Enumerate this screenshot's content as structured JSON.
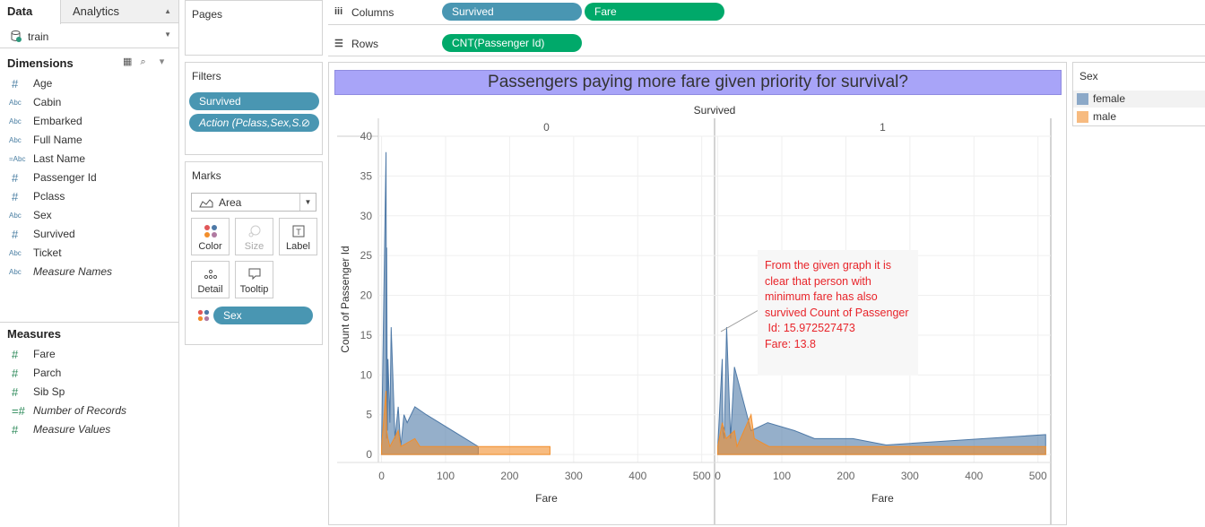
{
  "data_pane": {
    "tabs": [
      {
        "label": "Data"
      },
      {
        "label": "Analytics"
      }
    ],
    "source": "train",
    "dimensions_title": "Dimensions",
    "dimensions": [
      {
        "type": "#",
        "label": "Age"
      },
      {
        "type": "Abc",
        "label": "Cabin"
      },
      {
        "type": "Abc",
        "label": "Embarked"
      },
      {
        "type": "Abc",
        "label": "Full Name"
      },
      {
        "type": "=Abc",
        "label": "Last Name"
      },
      {
        "type": "#",
        "label": "Passenger Id"
      },
      {
        "type": "#",
        "label": "Pclass"
      },
      {
        "type": "Abc",
        "label": "Sex"
      },
      {
        "type": "#",
        "label": "Survived"
      },
      {
        "type": "Abc",
        "label": "Ticket"
      },
      {
        "type": "Abc",
        "label": "Measure Names"
      }
    ],
    "measures_title": "Measures",
    "measures": [
      {
        "type": "#",
        "label": "Fare"
      },
      {
        "type": "#",
        "label": "Parch"
      },
      {
        "type": "#",
        "label": "Sib Sp"
      },
      {
        "type": "=#",
        "label": "Number of Records"
      },
      {
        "type": "#",
        "label": "Measure Values"
      }
    ]
  },
  "pages": {
    "title": "Pages"
  },
  "filters": {
    "title": "Filters",
    "pills": [
      "Survived",
      "Action (Pclass,Sex,S.."
    ]
  },
  "marks": {
    "title": "Marks",
    "mark_type": "Area",
    "buttons": [
      "Color",
      "Size",
      "Label",
      "Detail",
      "Tooltip"
    ],
    "color_pill": "Sex"
  },
  "columns": {
    "label": "Columns",
    "pills": [
      "Survived",
      "Fare"
    ]
  },
  "rows": {
    "label": "Rows",
    "pills": [
      "CNT(Passenger Id)"
    ]
  },
  "colors": {
    "female": "#4e79a7",
    "male": "#f28e2b",
    "pill_blue": "#4996b2",
    "pill_green": "#00a96a",
    "title_bg": "#a8a4f8"
  },
  "legend": {
    "title": "Sex",
    "items": [
      {
        "label": "female"
      },
      {
        "label": "male"
      }
    ]
  },
  "annotation": {
    "text": "From the given graph it is clear that person with minimum fare has also survived Count of Passenger\n Id: 15.972527473\nFare: 13.8"
  },
  "chart_data": {
    "type": "area",
    "title": "Passengers paying more fare given priority for survival?",
    "column_header": "Survived",
    "panes": [
      "0",
      "1"
    ],
    "xlabel": "Fare",
    "ylabel": "Count of Passenger Id",
    "x_ticks": [
      0,
      100,
      200,
      300,
      400,
      500
    ],
    "y_ticks": [
      0,
      5,
      10,
      15,
      20,
      25,
      30,
      35,
      40
    ],
    "xlim": [
      -5,
      520
    ],
    "ylim": [
      -1,
      40
    ],
    "series": [
      {
        "name": "female",
        "pane": "0",
        "x": [
          0,
          7,
          7.8,
          8,
          9,
          10,
          13,
          15,
          21,
          26,
          30,
          35,
          40,
          52,
          70,
          151
        ],
        "y": [
          1,
          38,
          2,
          26,
          3,
          12,
          4,
          16,
          2,
          6,
          1,
          5,
          4,
          6,
          5,
          1
        ]
      },
      {
        "name": "male",
        "pane": "0",
        "x": [
          0,
          7,
          8,
          10,
          13,
          26,
          30,
          52,
          60,
          80,
          151,
          263
        ],
        "y": [
          1,
          8,
          3,
          2,
          1,
          3,
          1,
          2,
          1,
          1,
          1,
          1
        ]
      },
      {
        "name": "female",
        "pane": "1",
        "x": [
          0,
          7,
          8,
          10,
          13.8,
          20,
          26,
          52,
          78,
          120,
          151,
          211,
          263,
          512
        ],
        "y": [
          1,
          12,
          3,
          2,
          16,
          2,
          11,
          3,
          4,
          3,
          2,
          2,
          1.2,
          2.5
        ]
      },
      {
        "name": "male",
        "pane": "1",
        "x": [
          0,
          7,
          13,
          26,
          30,
          52,
          57,
          80,
          120,
          211,
          263,
          512
        ],
        "y": [
          1,
          4,
          2,
          3,
          1,
          5,
          2,
          1,
          1,
          1,
          1,
          1
        ]
      }
    ],
    "legend_position": "right",
    "grid": true
  }
}
